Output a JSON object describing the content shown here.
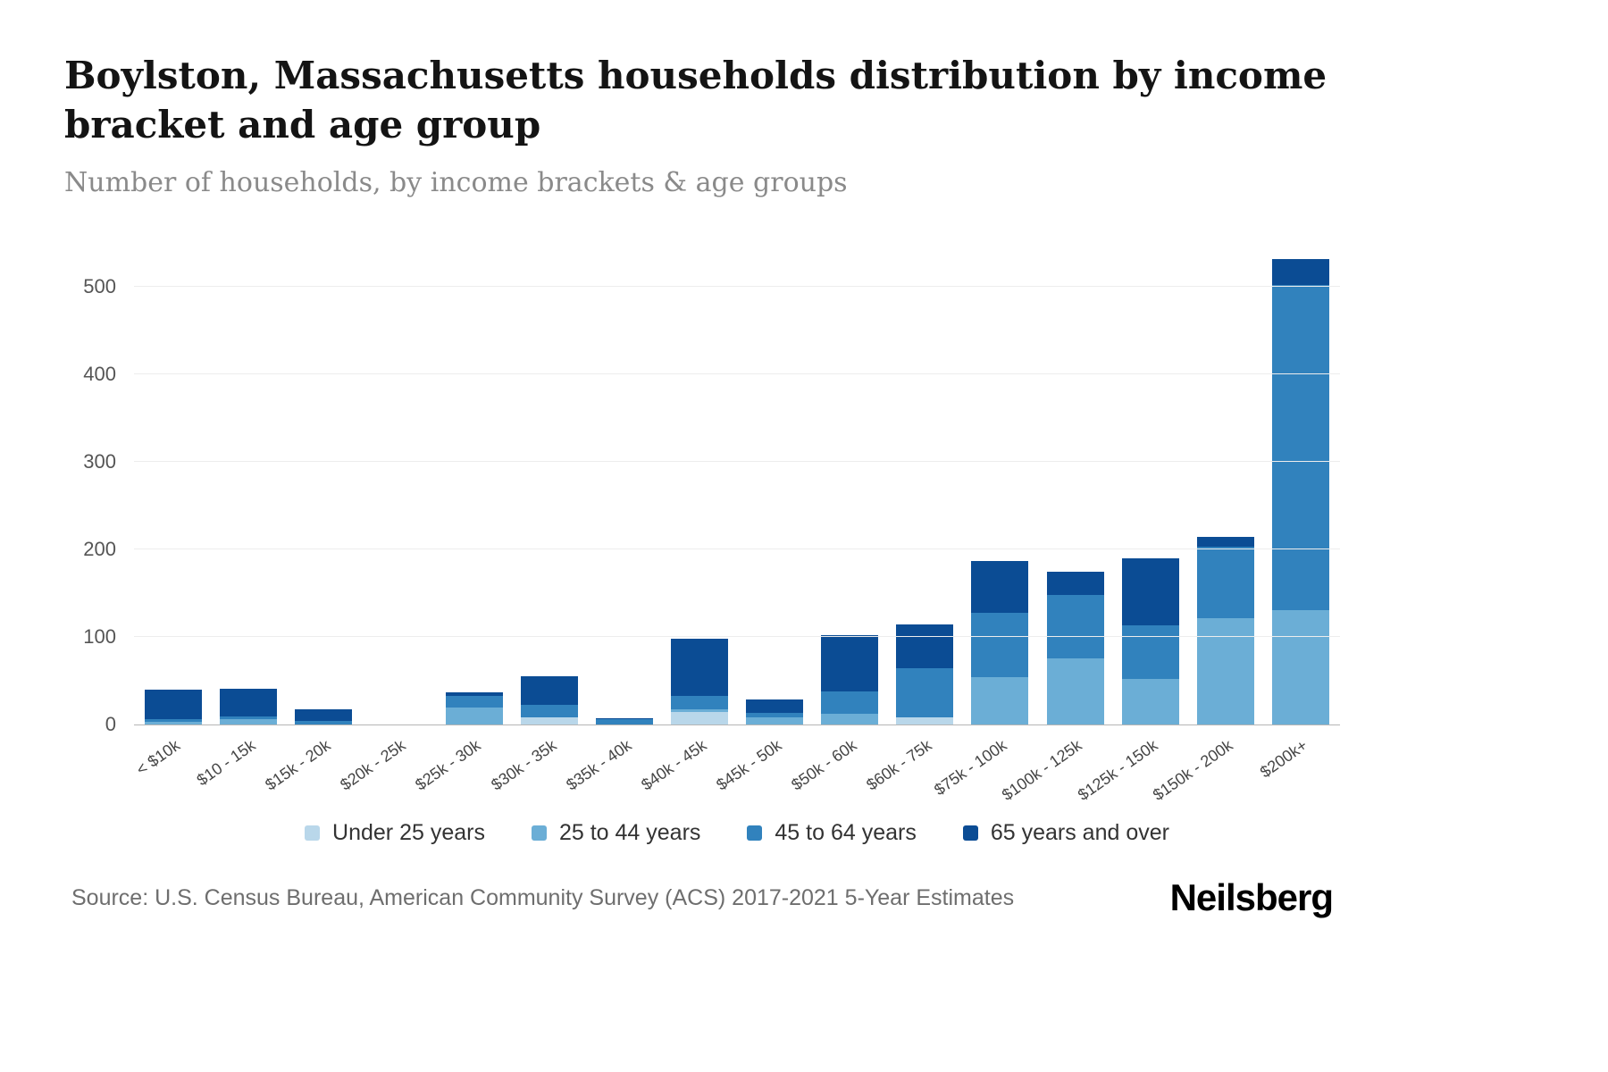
{
  "header": {
    "title": "Boylston, Massachusetts households distribution by income bracket and age group",
    "subtitle": "Number of households, by income brackets & age groups"
  },
  "chart_data": {
    "type": "bar",
    "stacked": true,
    "title": "Boylston, Massachusetts households distribution by income bracket and age group",
    "subtitle": "Number of households, by income brackets & age groups",
    "categories": [
      "< $10k",
      "$10 - 15k",
      "$15k - 20k",
      "$20k - 25k",
      "$25k - 30k",
      "$30k - 35k",
      "$35k - 40k",
      "$40k - 45k",
      "$45k - 50k",
      "$50k - 60k",
      "$60k - 75k",
      "$75k - 100k",
      "$100k - 125k",
      "$125k - 150k",
      "$150k - 200k",
      "$200k+"
    ],
    "series": [
      {
        "name": "Under 25 years",
        "color": "#b9d7ea",
        "values": [
          0,
          0,
          0,
          0,
          0,
          8,
          0,
          15,
          0,
          0,
          8,
          0,
          0,
          0,
          0,
          0
        ]
      },
      {
        "name": "25 to 44 years",
        "color": "#6baed6",
        "values": [
          3,
          6,
          0,
          0,
          20,
          0,
          0,
          3,
          8,
          12,
          0,
          54,
          76,
          52,
          122,
          131
        ]
      },
      {
        "name": "45 to 64 years",
        "color": "#3182bd",
        "values": [
          3,
          3,
          4,
          0,
          13,
          15,
          6,
          15,
          5,
          26,
          57,
          74,
          72,
          61,
          81,
          371
        ]
      },
      {
        "name": "65 years and over",
        "color": "#0b4c94",
        "values": [
          34,
          32,
          14,
          0,
          4,
          32,
          1,
          65,
          16,
          64,
          49,
          59,
          27,
          77,
          12,
          30
        ]
      }
    ],
    "totals": [
      40,
      41,
      18,
      0,
      37,
      55,
      7,
      98,
      29,
      102,
      114,
      187,
      175,
      190,
      215,
      532
    ],
    "xlabel": "",
    "ylabel": "",
    "yticks": [
      0,
      100,
      200,
      300,
      400,
      500
    ],
    "ylim": [
      0,
      550
    ],
    "grid": true,
    "legend_position": "bottom"
  },
  "footer": {
    "source": "Source: U.S. Census Bureau, American Community Survey (ACS) 2017-2021 5-Year Estimates",
    "brand": "Neilsberg"
  }
}
